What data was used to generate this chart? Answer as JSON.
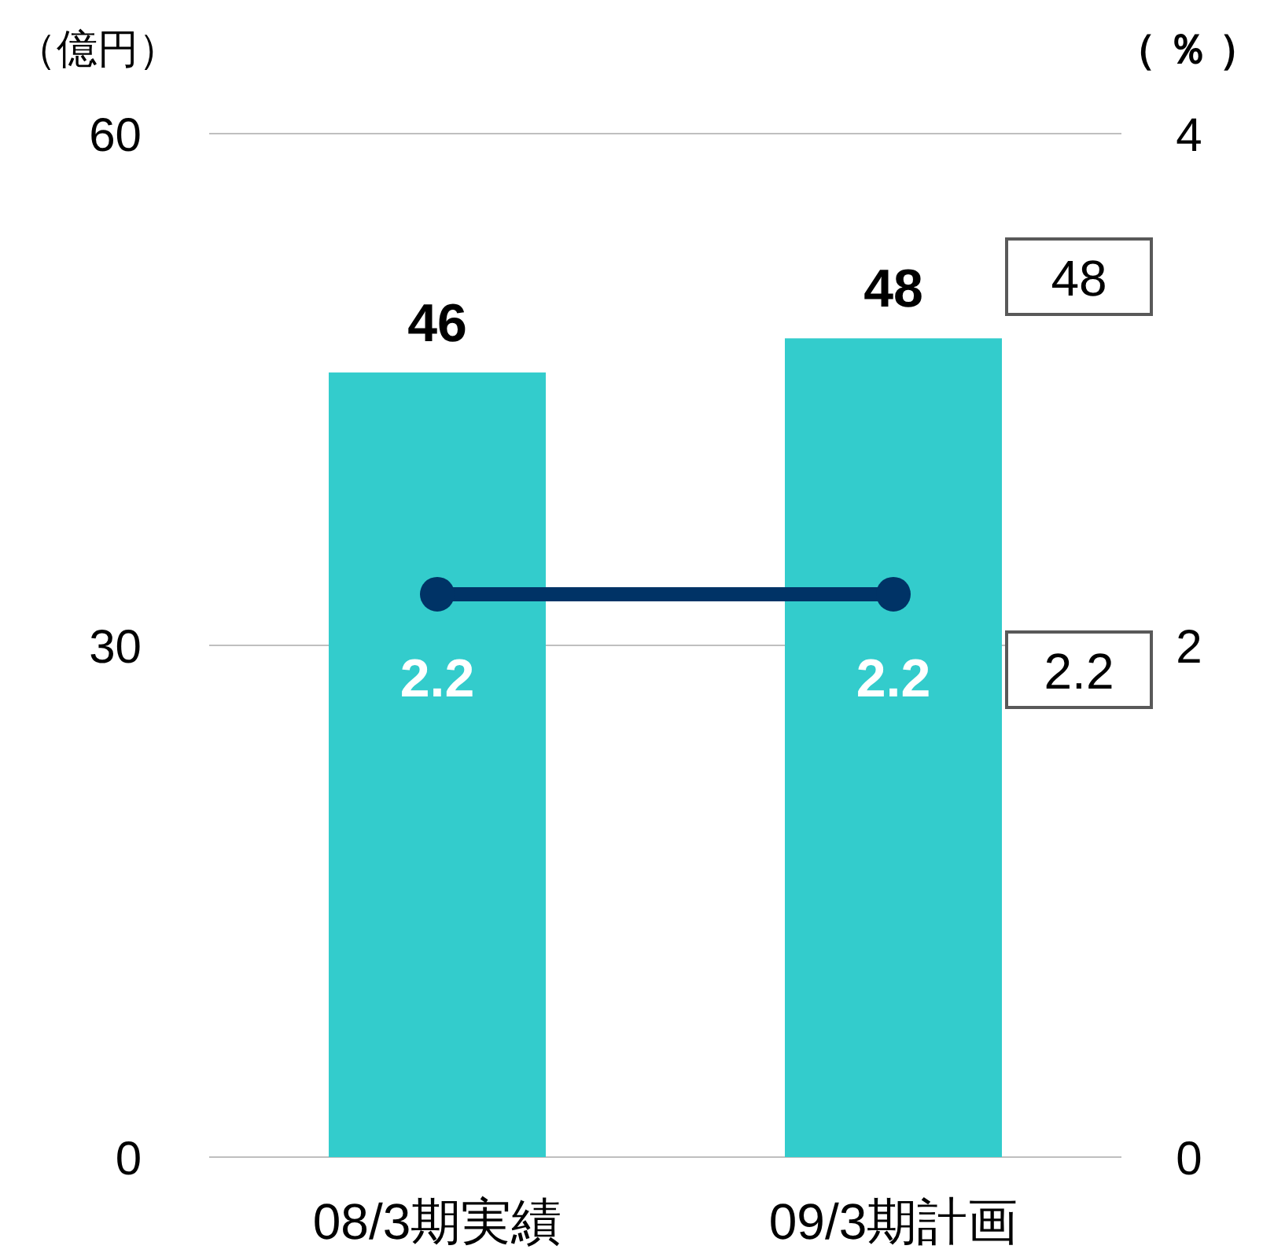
{
  "chart_data": {
    "type": "bar",
    "categories": [
      "08/3期実績",
      "09/3期計画"
    ],
    "series": [
      {
        "color": "#33cccc",
        "values": [
          46,
          48
        ]
      },
      {
        "type": "line",
        "axis": "y2",
        "color": "#003366",
        "values": [
          2.2,
          2.2
        ],
        "marker": "circle"
      }
    ],
    "ylabel": "（億円）",
    "y2label": "（ ％ ）",
    "ylim": [
      0,
      60
    ],
    "yticks": [
      0,
      30,
      60
    ],
    "y2lim": [
      0,
      4
    ],
    "y2ticks": [
      0,
      2,
      4
    ],
    "grid": "y",
    "data_labels": true,
    "annotations": [
      "48",
      "2.2"
    ]
  }
}
